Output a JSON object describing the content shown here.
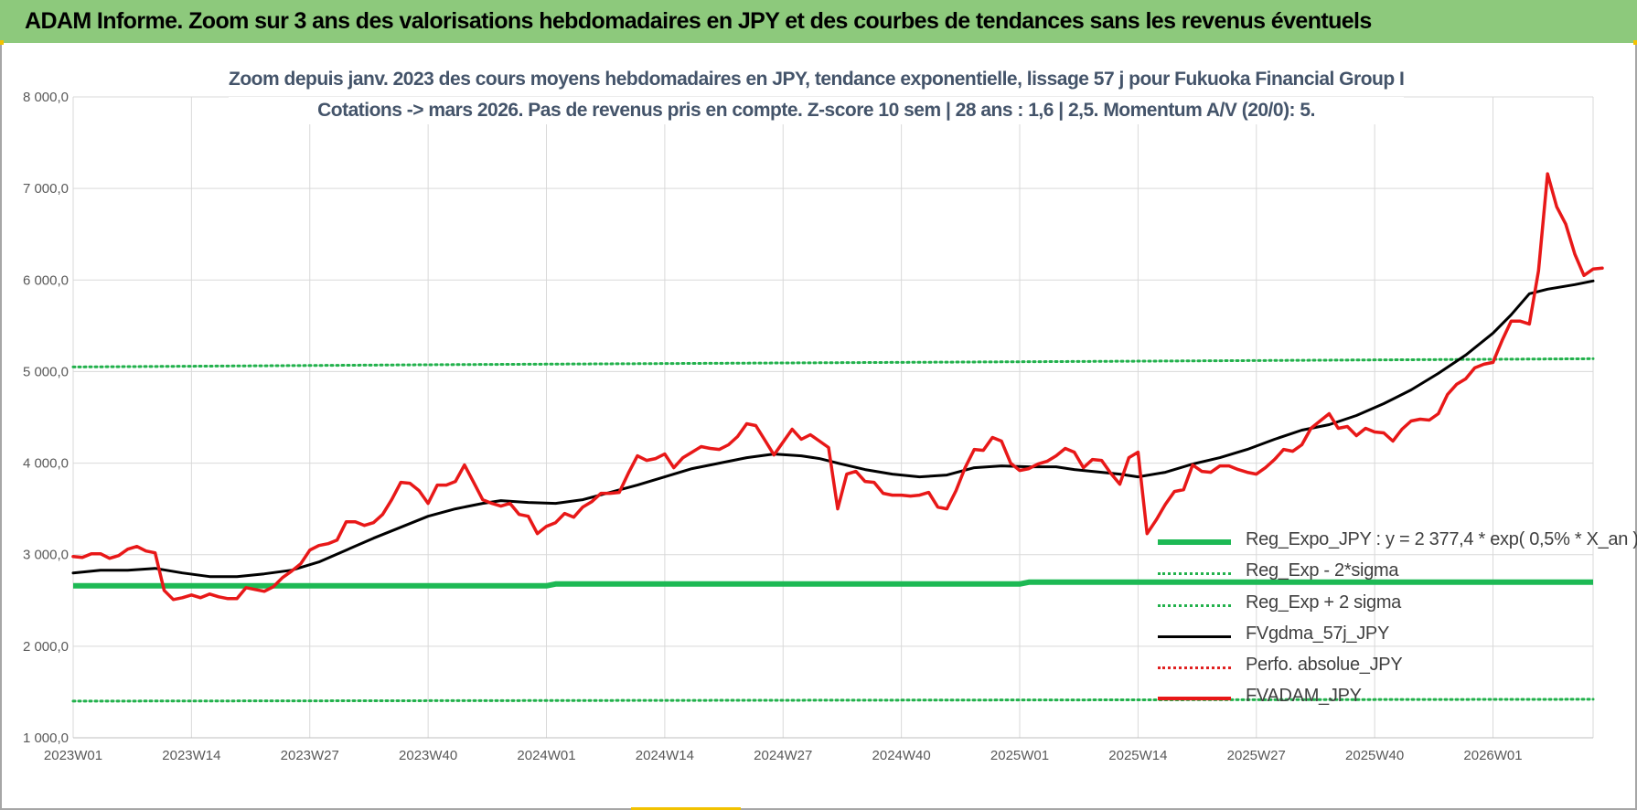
{
  "banner": {
    "title": "ADAM Informe. Zoom sur 3 ans des valorisations hebdomadaires en JPY et des courbes de tendances sans les revenus éventuels"
  },
  "colors": {
    "banner_bg": "#8dc97c",
    "expo": "#1db954",
    "sigma": "#22b14c",
    "mma": "#000000",
    "perfo": "#e02020",
    "price": "#e81818"
  },
  "chart_data": {
    "type": "line",
    "title_line1": "Zoom depuis janv. 2023 des cours moyens hebdomadaires en JPY, tendance exponentielle, lissage 57 j pour Fukuoka Financial Group I",
    "title_line2": "Cotations -> mars 2026. Pas de revenus pris en compte. Z-score 10 sem | 28 ans : 1,6 | 2,5. Momentum A/V (20/0): 5.",
    "ylim": [
      1000,
      8000
    ],
    "y_ticks": [
      "1 000,0",
      "2 000,0",
      "3 000,0",
      "4 000,0",
      "5 000,0",
      "6 000,0",
      "7 000,0",
      "8 000,0"
    ],
    "x_ticks": [
      "2023W01",
      "2023W14",
      "2023W27",
      "2023W40",
      "2024W01",
      "2024W14",
      "2024W27",
      "2024W40",
      "2025W01",
      "2025W14",
      "2025W27",
      "2025W40",
      "2026W01"
    ],
    "x_range_weeks": [
      0,
      167
    ],
    "grid": "vertical and horizontal",
    "legend_position": "bottom-right",
    "series": [
      {
        "name": "Reg_Expo_JPY : y = 2 377,4 * exp( 0,5% *  X_an )",
        "style": "thick-solid",
        "points": [
          [
            0,
            2660
          ],
          [
            52,
            2660
          ],
          [
            53,
            2680
          ],
          [
            104,
            2680
          ],
          [
            105,
            2700
          ],
          [
            167,
            2700
          ]
        ]
      },
      {
        "name": "Reg_Exp - 2*sigma",
        "style": "dotted",
        "points": [
          [
            0,
            1400
          ],
          [
            167,
            1420
          ]
        ]
      },
      {
        "name": "Reg_Exp + 2 sigma",
        "style": "dotted",
        "points": [
          [
            0,
            5050
          ],
          [
            40,
            5075
          ],
          [
            80,
            5095
          ],
          [
            120,
            5115
          ],
          [
            167,
            5140
          ]
        ]
      },
      {
        "name": "FVgdma_57j_JPY",
        "style": "solid",
        "points": [
          [
            0,
            2800
          ],
          [
            3,
            2830
          ],
          [
            6,
            2830
          ],
          [
            9,
            2850
          ],
          [
            12,
            2800
          ],
          [
            15,
            2760
          ],
          [
            18,
            2760
          ],
          [
            21,
            2790
          ],
          [
            24,
            2830
          ],
          [
            27,
            2920
          ],
          [
            30,
            3050
          ],
          [
            33,
            3180
          ],
          [
            36,
            3300
          ],
          [
            39,
            3420
          ],
          [
            42,
            3500
          ],
          [
            45,
            3560
          ],
          [
            47,
            3590
          ],
          [
            50,
            3570
          ],
          [
            53,
            3560
          ],
          [
            56,
            3600
          ],
          [
            59,
            3680
          ],
          [
            62,
            3760
          ],
          [
            65,
            3850
          ],
          [
            68,
            3940
          ],
          [
            71,
            4000
          ],
          [
            74,
            4060
          ],
          [
            77,
            4100
          ],
          [
            80,
            4080
          ],
          [
            82,
            4050
          ],
          [
            84,
            4000
          ],
          [
            87,
            3930
          ],
          [
            90,
            3880
          ],
          [
            93,
            3850
          ],
          [
            96,
            3870
          ],
          [
            99,
            3950
          ],
          [
            102,
            3970
          ],
          [
            105,
            3960
          ],
          [
            108,
            3960
          ],
          [
            110,
            3930
          ],
          [
            113,
            3900
          ],
          [
            115,
            3880
          ],
          [
            117,
            3850
          ],
          [
            120,
            3900
          ],
          [
            123,
            3990
          ],
          [
            126,
            4060
          ],
          [
            129,
            4150
          ],
          [
            132,
            4260
          ],
          [
            135,
            4360
          ],
          [
            138,
            4420
          ],
          [
            141,
            4520
          ],
          [
            144,
            4650
          ],
          [
            147,
            4800
          ],
          [
            150,
            4980
          ],
          [
            153,
            5180
          ],
          [
            156,
            5420
          ],
          [
            158,
            5620
          ],
          [
            160,
            5850
          ],
          [
            162,
            5900
          ],
          [
            165,
            5950
          ],
          [
            167,
            5990
          ]
        ]
      },
      {
        "name": "Perfo. absolue_JPY",
        "style": "dotted",
        "points": []
      },
      {
        "name": "FVADAM_JPY",
        "style": "solid",
        "points": [
          [
            0,
            2980
          ],
          [
            1,
            2970
          ],
          [
            2,
            3010
          ],
          [
            3,
            3010
          ],
          [
            4,
            2960
          ],
          [
            5,
            2990
          ],
          [
            6,
            3060
          ],
          [
            7,
            3090
          ],
          [
            8,
            3040
          ],
          [
            9,
            3020
          ],
          [
            10,
            2610
          ],
          [
            11,
            2510
          ],
          [
            12,
            2530
          ],
          [
            13,
            2560
          ],
          [
            14,
            2530
          ],
          [
            15,
            2570
          ],
          [
            16,
            2540
          ],
          [
            17,
            2520
          ],
          [
            18,
            2520
          ],
          [
            19,
            2640
          ],
          [
            20,
            2620
          ],
          [
            21,
            2600
          ],
          [
            22,
            2650
          ],
          [
            23,
            2750
          ],
          [
            24,
            2820
          ],
          [
            25,
            2900
          ],
          [
            26,
            3050
          ],
          [
            27,
            3100
          ],
          [
            28,
            3120
          ],
          [
            29,
            3160
          ],
          [
            30,
            3360
          ],
          [
            31,
            3360
          ],
          [
            32,
            3320
          ],
          [
            33,
            3350
          ],
          [
            34,
            3440
          ],
          [
            35,
            3600
          ],
          [
            36,
            3790
          ],
          [
            37,
            3780
          ],
          [
            38,
            3700
          ],
          [
            39,
            3560
          ],
          [
            40,
            3760
          ],
          [
            41,
            3760
          ],
          [
            42,
            3800
          ],
          [
            43,
            3980
          ],
          [
            44,
            3790
          ],
          [
            45,
            3600
          ],
          [
            46,
            3560
          ],
          [
            47,
            3530
          ],
          [
            48,
            3560
          ],
          [
            49,
            3440
          ],
          [
            50,
            3420
          ],
          [
            51,
            3230
          ],
          [
            52,
            3310
          ],
          [
            53,
            3350
          ],
          [
            54,
            3450
          ],
          [
            55,
            3410
          ],
          [
            56,
            3520
          ],
          [
            57,
            3580
          ],
          [
            58,
            3670
          ],
          [
            59,
            3670
          ],
          [
            60,
            3680
          ],
          [
            61,
            3890
          ],
          [
            62,
            4080
          ],
          [
            63,
            4030
          ],
          [
            64,
            4050
          ],
          [
            65,
            4100
          ],
          [
            66,
            3950
          ],
          [
            67,
            4060
          ],
          [
            68,
            4120
          ],
          [
            69,
            4180
          ],
          [
            70,
            4160
          ],
          [
            71,
            4150
          ],
          [
            72,
            4200
          ],
          [
            73,
            4290
          ],
          [
            74,
            4430
          ],
          [
            75,
            4410
          ],
          [
            76,
            4250
          ],
          [
            77,
            4090
          ],
          [
            78,
            4230
          ],
          [
            79,
            4370
          ],
          [
            80,
            4260
          ],
          [
            81,
            4310
          ],
          [
            82,
            4240
          ],
          [
            83,
            4170
          ],
          [
            84,
            3500
          ],
          [
            85,
            3880
          ],
          [
            86,
            3910
          ],
          [
            87,
            3800
          ],
          [
            88,
            3790
          ],
          [
            89,
            3670
          ],
          [
            90,
            3650
          ],
          [
            91,
            3650
          ],
          [
            92,
            3640
          ],
          [
            93,
            3650
          ],
          [
            94,
            3680
          ],
          [
            95,
            3520
          ],
          [
            96,
            3500
          ],
          [
            97,
            3700
          ],
          [
            98,
            3950
          ],
          [
            99,
            4150
          ],
          [
            100,
            4140
          ],
          [
            101,
            4280
          ],
          [
            102,
            4240
          ],
          [
            103,
            4000
          ],
          [
            104,
            3920
          ],
          [
            105,
            3940
          ],
          [
            106,
            3990
          ],
          [
            107,
            4020
          ],
          [
            108,
            4080
          ],
          [
            109,
            4160
          ],
          [
            110,
            4120
          ],
          [
            111,
            3950
          ],
          [
            112,
            4040
          ],
          [
            113,
            4030
          ],
          [
            114,
            3890
          ],
          [
            115,
            3770
          ],
          [
            116,
            4060
          ],
          [
            117,
            4120
          ],
          [
            118,
            3230
          ],
          [
            119,
            3380
          ],
          [
            120,
            3550
          ],
          [
            121,
            3690
          ],
          [
            122,
            3710
          ],
          [
            123,
            3980
          ],
          [
            124,
            3910
          ],
          [
            125,
            3900
          ],
          [
            126,
            3970
          ],
          [
            127,
            3970
          ],
          [
            128,
            3930
          ],
          [
            129,
            3900
          ],
          [
            130,
            3880
          ],
          [
            131,
            3950
          ],
          [
            132,
            4040
          ],
          [
            133,
            4150
          ],
          [
            134,
            4130
          ],
          [
            135,
            4200
          ],
          [
            136,
            4380
          ],
          [
            137,
            4460
          ],
          [
            138,
            4540
          ],
          [
            139,
            4380
          ],
          [
            140,
            4400
          ],
          [
            141,
            4300
          ],
          [
            142,
            4380
          ],
          [
            143,
            4340
          ],
          [
            144,
            4330
          ],
          [
            145,
            4240
          ],
          [
            146,
            4370
          ],
          [
            147,
            4460
          ],
          [
            148,
            4480
          ],
          [
            149,
            4470
          ],
          [
            150,
            4540
          ],
          [
            151,
            4750
          ],
          [
            152,
            4860
          ],
          [
            153,
            4920
          ],
          [
            154,
            5040
          ],
          [
            155,
            5080
          ],
          [
            156,
            5100
          ],
          [
            157,
            5340
          ],
          [
            158,
            5550
          ],
          [
            159,
            5550
          ],
          [
            160,
            5520
          ],
          [
            161,
            6100
          ],
          [
            162,
            7160
          ],
          [
            163,
            6800
          ],
          [
            164,
            6610
          ],
          [
            165,
            6280
          ],
          [
            166,
            6050
          ],
          [
            167,
            6120
          ],
          [
            168,
            6130
          ]
        ]
      }
    ]
  }
}
